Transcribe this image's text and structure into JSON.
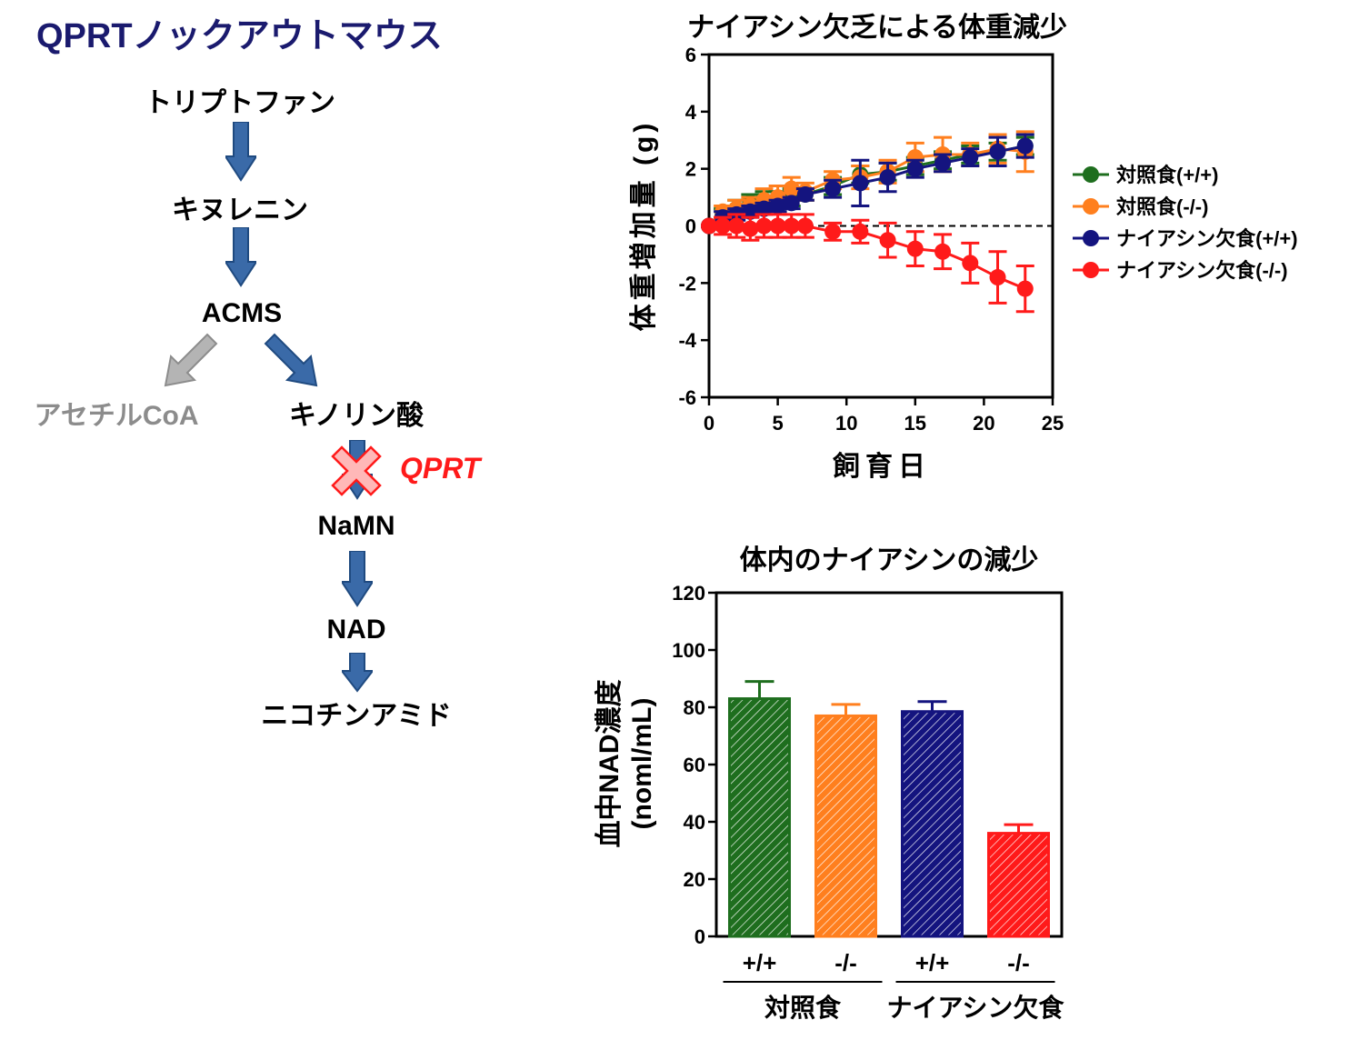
{
  "pathway": {
    "title": "QPRTノックアウトマウス",
    "nodes": {
      "tryptophan": "トリプトファン",
      "kynurenine": "キヌレニン",
      "acms": "ACMS",
      "acetyl_coa": "アセチルCoA",
      "quinolinic_acid": "キノリン酸",
      "namn": "NaMN",
      "nad": "NAD",
      "nicotinamide": "ニコチンアミド"
    },
    "enzyme": "QPRT",
    "colors": {
      "arrow": "#3a6aa8",
      "blocked_arrow": "#b4b4b4",
      "title": "#1a1a6e",
      "enzyme": "#ff1a1a"
    },
    "icons": {
      "block": "x-mark-icon",
      "arrow": "down-arrow-icon"
    }
  },
  "chart_data": [
    {
      "type": "line",
      "title": "ナイアシン欠乏による体重減少",
      "xlabel": "飼育日",
      "ylabel": "体重増加量 (g)",
      "xlim": [
        0,
        25
      ],
      "ylim": [
        -6,
        6
      ],
      "xticks": [
        0,
        5,
        10,
        15,
        20,
        25
      ],
      "yticks": [
        -6,
        -4,
        -2,
        0,
        2,
        4,
        6
      ],
      "grid": false,
      "zero_line": "dashed",
      "legend_position": "right",
      "series": [
        {
          "name": "対照食(+/+)",
          "color": "#1e6e1e",
          "x": [
            0,
            1,
            2,
            3,
            4,
            5,
            6,
            7,
            9,
            11,
            13,
            15,
            17,
            19,
            21,
            23
          ],
          "y": [
            0,
            0.4,
            0.6,
            0.8,
            0.9,
            0.9,
            1.0,
            1.1,
            1.4,
            1.8,
            1.9,
            2.1,
            2.3,
            2.5,
            2.6,
            2.8
          ],
          "err": [
            0,
            0.2,
            0.3,
            0.3,
            0.3,
            0.3,
            0.3,
            0.2,
            0.3,
            0.3,
            0.3,
            0.3,
            0.3,
            0.3,
            0.3,
            0.3
          ]
        },
        {
          "name": "対照食(-/-)",
          "color": "#ff7f1e",
          "x": [
            0,
            1,
            2,
            3,
            4,
            5,
            6,
            7,
            9,
            11,
            13,
            15,
            17,
            19,
            21,
            23
          ],
          "y": [
            0,
            0.5,
            0.6,
            0.7,
            0.9,
            1.0,
            1.3,
            1.2,
            1.6,
            1.7,
            1.9,
            2.4,
            2.5,
            2.5,
            2.7,
            2.6
          ],
          "err": [
            0,
            0.2,
            0.3,
            0.3,
            0.4,
            0.4,
            0.4,
            0.3,
            0.3,
            0.4,
            0.4,
            0.5,
            0.6,
            0.4,
            0.5,
            0.7
          ]
        },
        {
          "name": "ナイアシン欠食(+/+)",
          "color": "#14147f",
          "x": [
            0,
            1,
            2,
            3,
            4,
            5,
            6,
            7,
            9,
            11,
            13,
            15,
            17,
            19,
            21,
            23
          ],
          "y": [
            0,
            0.3,
            0.4,
            0.5,
            0.6,
            0.7,
            0.8,
            1.1,
            1.3,
            1.5,
            1.7,
            2.0,
            2.2,
            2.4,
            2.6,
            2.8
          ],
          "err": [
            0,
            0.2,
            0.2,
            0.2,
            0.2,
            0.2,
            0.2,
            0.2,
            0.3,
            0.8,
            0.5,
            0.3,
            0.3,
            0.3,
            0.5,
            0.4
          ]
        },
        {
          "name": "ナイアシン欠食(-/-)",
          "color": "#ff1a1a",
          "x": [
            0,
            1,
            2,
            3,
            4,
            5,
            6,
            7,
            9,
            11,
            13,
            15,
            17,
            19,
            21,
            23
          ],
          "y": [
            0,
            0.0,
            0.0,
            -0.1,
            0.0,
            0.0,
            0.0,
            0.0,
            -0.2,
            -0.2,
            -0.5,
            -0.8,
            -0.9,
            -1.3,
            -1.8,
            -2.2
          ],
          "err": [
            0,
            0.3,
            0.4,
            0.4,
            0.4,
            0.4,
            0.4,
            0.4,
            0.3,
            0.4,
            0.6,
            0.6,
            0.6,
            0.7,
            0.9,
            0.8
          ]
        }
      ]
    },
    {
      "type": "bar",
      "title": "体内のナイアシンの減少",
      "ylabel_lines": [
        "血中NAD濃度",
        "(noml/mL)"
      ],
      "ylim": [
        0,
        120
      ],
      "yticks": [
        0,
        20,
        40,
        60,
        80,
        100,
        120
      ],
      "categories": [
        "+/+",
        "-/-",
        "+/+",
        "-/-"
      ],
      "groups": [
        {
          "label": "対照食",
          "span": [
            0,
            1
          ]
        },
        {
          "label": "ナイアシン欠食",
          "span": [
            2,
            3
          ]
        }
      ],
      "values": [
        83,
        77,
        78.5,
        36
      ],
      "errors": [
        6,
        4,
        3.5,
        3
      ],
      "colors": [
        "#1e6e1e",
        "#ff7f1e",
        "#14147f",
        "#ff1a1a"
      ],
      "fill": "diagonal-hatch"
    }
  ]
}
